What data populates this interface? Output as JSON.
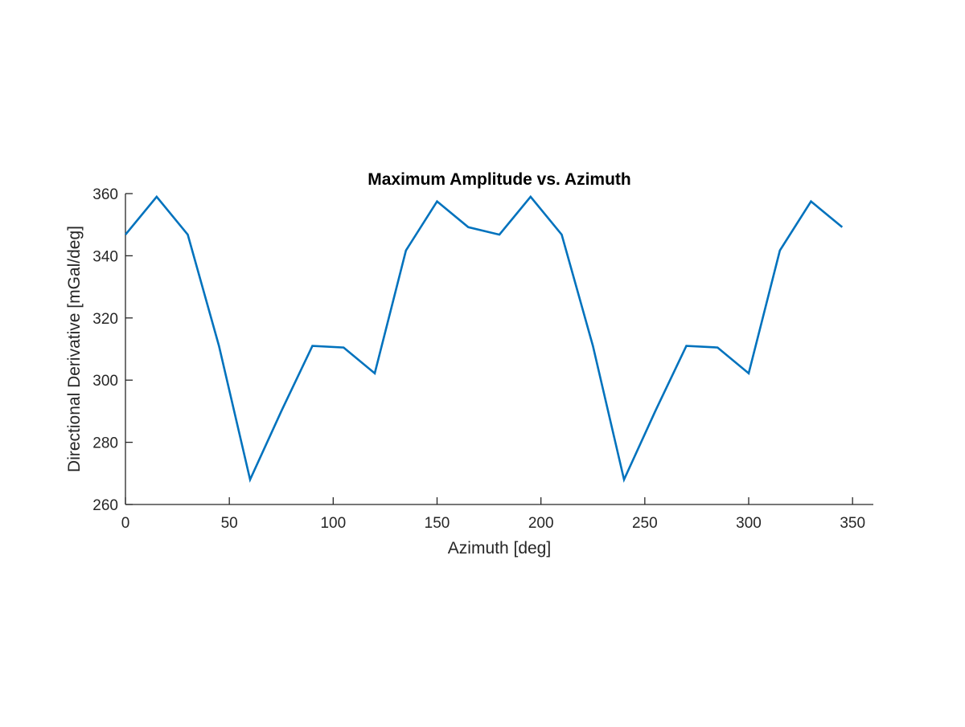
{
  "chart_data": {
    "type": "line",
    "title": "Maximum Amplitude vs. Azimuth",
    "xlabel": "Azimuth [deg]",
    "ylabel": "Directional Derivative [mGal/deg]",
    "xlim": [
      0,
      360
    ],
    "ylim": [
      260,
      360
    ],
    "xticks": [
      0,
      50,
      100,
      150,
      200,
      250,
      300,
      350
    ],
    "yticks": [
      260,
      280,
      300,
      320,
      340,
      360
    ],
    "grid": false,
    "legend": "none",
    "series": [
      {
        "color": "#0072BD",
        "x": [
          0,
          15,
          30,
          45,
          60,
          75,
          90,
          105,
          120,
          135,
          150,
          165,
          180,
          195,
          210,
          225,
          240,
          255,
          270,
          285,
          300,
          315,
          330,
          345
        ],
        "y": [
          346.8,
          359.0,
          346.8,
          311.0,
          268.0,
          290.0,
          311.0,
          310.5,
          302.2,
          341.7,
          357.5,
          349.2,
          346.8,
          359.0,
          346.8,
          311.0,
          268.0,
          290.0,
          311.0,
          310.5,
          302.2,
          341.7,
          357.5,
          349.2
        ]
      }
    ]
  }
}
